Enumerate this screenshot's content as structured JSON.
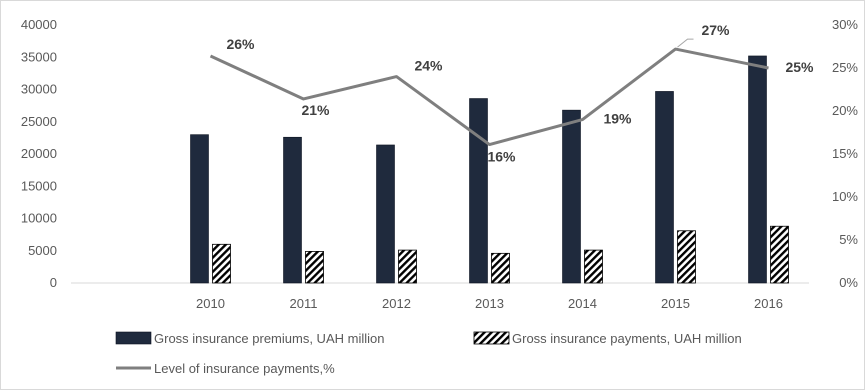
{
  "chart_data": {
    "type": "bar",
    "categories": [
      "2010",
      "2011",
      "2012",
      "2013",
      "2014",
      "2015",
      "2016"
    ],
    "series": [
      {
        "name": "Gross insurance premiums, UAH million",
        "kind": "bar",
        "axis": "left",
        "pattern": "solid",
        "color": "#1f2a3d",
        "values": [
          23000,
          22600,
          21400,
          28600,
          26800,
          29700,
          35200
        ]
      },
      {
        "name": "Gross insurance payments, UAH million",
        "kind": "bar",
        "axis": "left",
        "pattern": "diagonal-hatch",
        "color": "#000000",
        "values": [
          6000,
          4900,
          5100,
          4600,
          5100,
          8100,
          8800
        ]
      },
      {
        "name": "Level of insurance payments,%",
        "kind": "line",
        "axis": "right",
        "color": "#7f7f7f",
        "values": [
          26.4,
          21.4,
          24.0,
          16.1,
          19.0,
          27.2,
          25.0
        ],
        "labels": [
          "26%",
          "21%",
          "24%",
          "16%",
          "19%",
          "27%",
          "25%"
        ]
      }
    ],
    "y_left": {
      "min": 0,
      "max": 40000,
      "step": 5000,
      "ticks": [
        "0",
        "5000",
        "10000",
        "15000",
        "20000",
        "25000",
        "30000",
        "35000",
        "40000"
      ]
    },
    "y_right": {
      "min": 0,
      "max": 30,
      "step": 5,
      "ticks": [
        "0%",
        "5%",
        "10%",
        "15%",
        "20%",
        "25%",
        "30%"
      ]
    },
    "grid": false,
    "legend_position": "bottom"
  }
}
